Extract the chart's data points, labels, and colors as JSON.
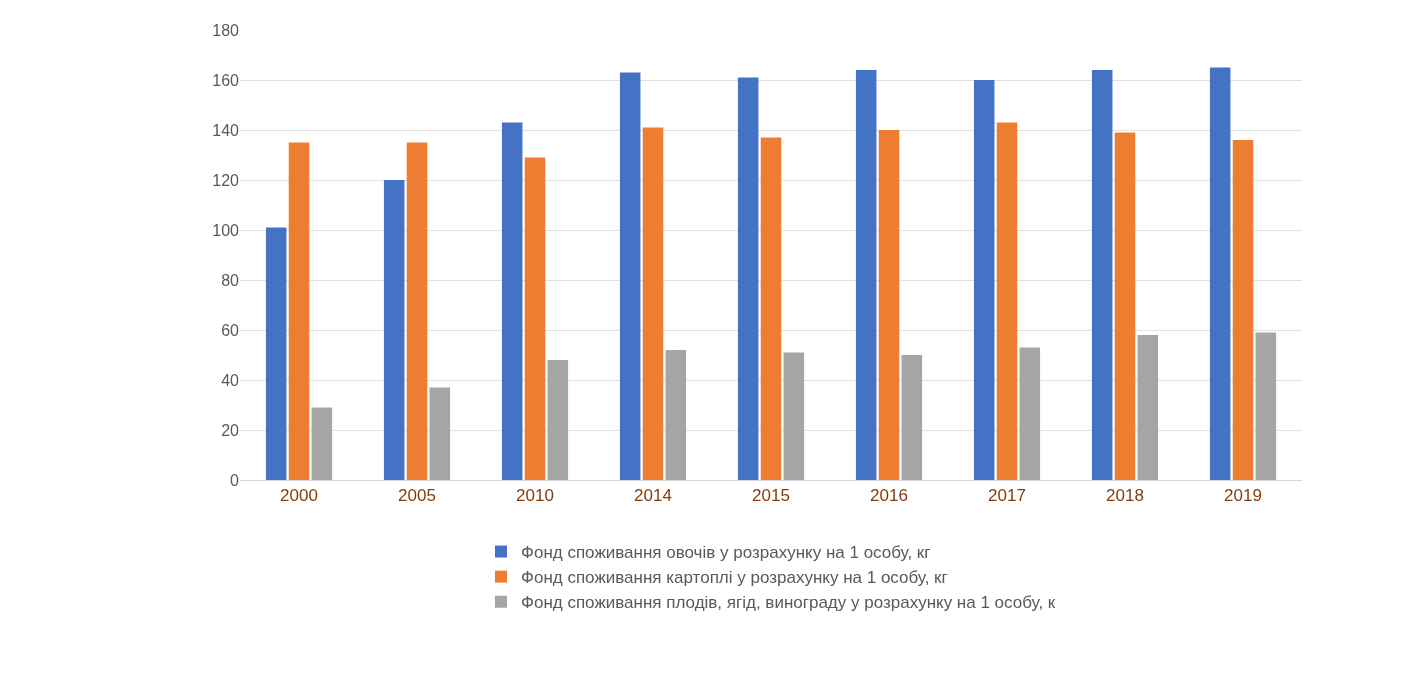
{
  "chart_data": {
    "type": "bar",
    "categories": [
      "2000",
      "2005",
      "2010",
      "2014",
      "2015",
      "2016",
      "2017",
      "2018",
      "2019"
    ],
    "series": [
      {
        "name": "Фонд споживання овочів у розрахунку на 1 особу, кг",
        "color": "#4472c4",
        "values": [
          101,
          120,
          143,
          163,
          161,
          164,
          160,
          164,
          165
        ]
      },
      {
        "name": "Фонд споживання картоплі у розрахунку на 1 особу, кг",
        "color": "#ed7d31",
        "values": [
          135,
          135,
          129,
          141,
          137,
          140,
          143,
          139,
          136
        ]
      },
      {
        "name": "Фонд споживання плодів, ягід, винограду у розрахунку на 1 особу, к",
        "color": "#a5a5a5",
        "values": [
          29,
          37,
          48,
          52,
          51,
          50,
          53,
          58,
          59
        ]
      }
    ],
    "ylim": [
      0,
      180
    ],
    "yticks": [
      0,
      20,
      40,
      60,
      80,
      100,
      120,
      140,
      160,
      180
    ],
    "grid": "y",
    "legend": "bottom"
  }
}
